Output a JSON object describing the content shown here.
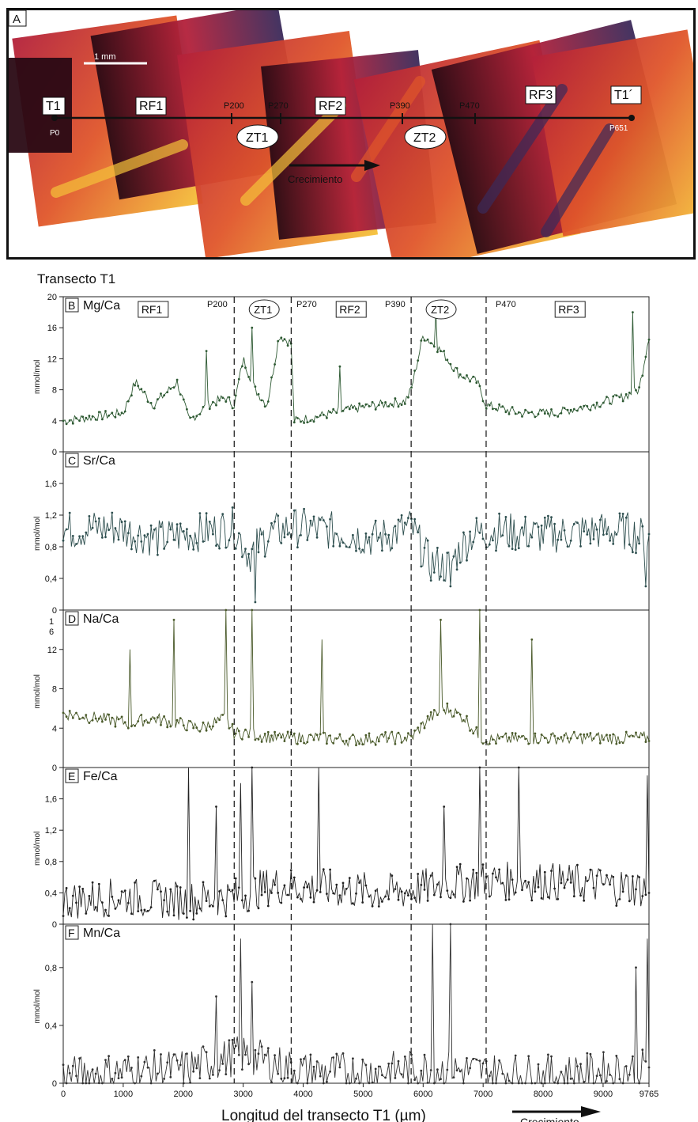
{
  "panel_a": {
    "panel_letter": "A",
    "scale_bar": "1 mm",
    "start_label": "T1",
    "end_label": "T1´",
    "start_point": "P0",
    "end_point": "P651",
    "points": [
      "P200",
      "P270",
      "P390",
      "P470"
    ],
    "zones_rect": [
      "RF1",
      "RF2",
      "RF3"
    ],
    "zones_oval": [
      "ZT1",
      "ZT2"
    ],
    "growth_label": "Crecimiento",
    "colors": {
      "dark": "#2a0a14",
      "red": "#b3203a",
      "orange": "#e0562a",
      "yellow": "#f5c23a",
      "purple": "#3a2a5a"
    }
  },
  "transect_title": "Transecto T1",
  "zone_header": {
    "points": [
      "P200",
      "P270",
      "P390",
      "P470"
    ],
    "rects": [
      "RF1",
      "RF2",
      "RF3"
    ],
    "ovals": [
      "ZT1",
      "ZT2"
    ]
  },
  "boundaries_um": [
    2850,
    3800,
    5800,
    7050
  ],
  "xlabel": "Longitud del transecto T1 (µm)",
  "growth_label": "Crecimiento",
  "chart_data": {
    "type": "line",
    "x_range": [
      0,
      9765
    ],
    "x_ticks": [
      "0",
      "1000",
      "2000",
      "3000",
      "4000",
      "5000",
      "6000",
      "7000",
      "8000",
      "9000",
      "9765"
    ],
    "x_tick_values": [
      0,
      1000,
      2000,
      3000,
      4000,
      5000,
      6000,
      7000,
      8000,
      9000,
      9765
    ],
    "y_unit": "mmol/mol",
    "panels": [
      {
        "letter": "B",
        "name": "Mg/Ca",
        "ylim": [
          0,
          20
        ],
        "y_ticks": [
          "0",
          "4",
          "8",
          "12",
          "16",
          "20"
        ],
        "y_tick_values": [
          0,
          4,
          8,
          12,
          16,
          20
        ],
        "color": "#2e5a33",
        "x": [
          0,
          500,
          1000,
          1200,
          1500,
          1900,
          2100,
          2400,
          2700,
          2850,
          3000,
          3200,
          3400,
          3600,
          3800,
          3850,
          4200,
          4800,
          5200,
          5700,
          5800,
          6000,
          6300,
          6600,
          6900,
          7050,
          7600,
          8200,
          8800,
          9300,
          9600,
          9765
        ],
        "values": [
          4,
          4.5,
          5,
          9,
          6,
          9,
          4,
          6,
          7,
          6,
          12,
          8,
          6,
          15,
          14,
          4,
          4.5,
          5.5,
          6,
          6.5,
          8,
          15,
          13,
          10,
          9,
          6,
          5,
          5,
          6,
          7,
          8,
          15
        ],
        "spikes": [
          {
            "x": 2400,
            "y": 13
          },
          {
            "x": 3150,
            "y": 16
          },
          {
            "x": 4600,
            "y": 11
          },
          {
            "x": 6200,
            "y": 18
          },
          {
            "x": 9500,
            "y": 18
          }
        ]
      },
      {
        "letter": "C",
        "name": "Sr/Ca",
        "ylim": [
          0,
          2
        ],
        "y_ticks": [
          "0",
          "0,4",
          "0,8",
          "1,2",
          "1,6"
        ],
        "y_tick_values": [
          0,
          0.4,
          0.8,
          1.2,
          1.6
        ],
        "color": "#2e4f4f",
        "x": [
          0,
          800,
          1600,
          2400,
          2850,
          3100,
          3400,
          3800,
          4500,
          5200,
          5800,
          6100,
          6400,
          6800,
          7200,
          8000,
          8800,
          9400,
          9765
        ],
        "values": [
          1.0,
          1.05,
          0.9,
          1.0,
          1.05,
          0.7,
          0.95,
          1.05,
          1.0,
          0.9,
          1.05,
          0.6,
          0.55,
          0.95,
          1.0,
          0.95,
          1.0,
          1.0,
          0.9
        ],
        "spikes": [
          {
            "x": 3200,
            "y": 0.1
          },
          {
            "x": 6450,
            "y": 0.3
          },
          {
            "x": 9700,
            "y": 0.3
          }
        ]
      },
      {
        "letter": "D",
        "name": "Na/Ca",
        "ylim": [
          0,
          16
        ],
        "y_ticks": [
          "0",
          "4",
          "8",
          "12"
        ],
        "y_tick_values": [
          0,
          4,
          8,
          12
        ],
        "extra_tick": "1\n6",
        "color": "#4a5a2a",
        "x": [
          0,
          600,
          1100,
          1500,
          1900,
          2300,
          2700,
          2850,
          3100,
          3500,
          4000,
          4300,
          4800,
          5400,
          5800,
          6100,
          6400,
          6700,
          6950,
          7100,
          8000,
          9000,
          9765
        ],
        "values": [
          5.5,
          5,
          4.5,
          5,
          4.5,
          4,
          5,
          3.5,
          3.5,
          3,
          3,
          3,
          2.8,
          3,
          3,
          5,
          6,
          5,
          3,
          2.8,
          3,
          3,
          3
        ],
        "spikes": [
          {
            "x": 1100,
            "y": 12
          },
          {
            "x": 1850,
            "y": 15
          },
          {
            "x": 2700,
            "y": 19
          },
          {
            "x": 3150,
            "y": 17
          },
          {
            "x": 4300,
            "y": 13
          },
          {
            "x": 6300,
            "y": 15
          },
          {
            "x": 6950,
            "y": 19
          },
          {
            "x": 7800,
            "y": 13
          }
        ]
      },
      {
        "letter": "E",
        "name": "Fe/Ca",
        "ylim": [
          0,
          2
        ],
        "y_ticks": [
          "0",
          "0,4",
          "0,8",
          "1,2",
          "1,6"
        ],
        "y_tick_values": [
          0,
          0.4,
          0.8,
          1.2,
          1.6
        ],
        "color": "#222222",
        "x": [
          0,
          1000,
          2000,
          2850,
          3500,
          4500,
          5500,
          6300,
          7000,
          8000,
          9000,
          9765
        ],
        "values": [
          0.3,
          0.35,
          0.3,
          0.35,
          0.5,
          0.45,
          0.4,
          0.5,
          0.55,
          0.55,
          0.5,
          0.45
        ],
        "spikes": [
          {
            "x": 2100,
            "y": 2.0
          },
          {
            "x": 2550,
            "y": 1.5
          },
          {
            "x": 2950,
            "y": 1.8
          },
          {
            "x": 3150,
            "y": 2.0
          },
          {
            "x": 4250,
            "y": 2.0
          },
          {
            "x": 6350,
            "y": 1.5
          },
          {
            "x": 6950,
            "y": 2.0
          },
          {
            "x": 7600,
            "y": 2.0
          },
          {
            "x": 9750,
            "y": 1.9
          }
        ]
      },
      {
        "letter": "F",
        "name": "Mn/Ca",
        "ylim": [
          0,
          1.1
        ],
        "y_ticks": [
          "0",
          "0,4",
          "0,8"
        ],
        "y_tick_values": [
          0,
          0.4,
          0.8
        ],
        "color": "#333333",
        "x": [
          0,
          1000,
          2000,
          3000,
          4000,
          5000,
          6000,
          7000,
          8000,
          9000,
          9765
        ],
        "values": [
          0.05,
          0.08,
          0.1,
          0.2,
          0.08,
          0.08,
          0.1,
          0.08,
          0.06,
          0.08,
          0.1
        ],
        "spikes": [
          {
            "x": 2550,
            "y": 0.6
          },
          {
            "x": 2950,
            "y": 1.0
          },
          {
            "x": 3150,
            "y": 0.7
          },
          {
            "x": 6150,
            "y": 1.1
          },
          {
            "x": 6450,
            "y": 1.1
          },
          {
            "x": 9550,
            "y": 0.8
          },
          {
            "x": 9740,
            "y": 1.0
          }
        ]
      }
    ]
  }
}
